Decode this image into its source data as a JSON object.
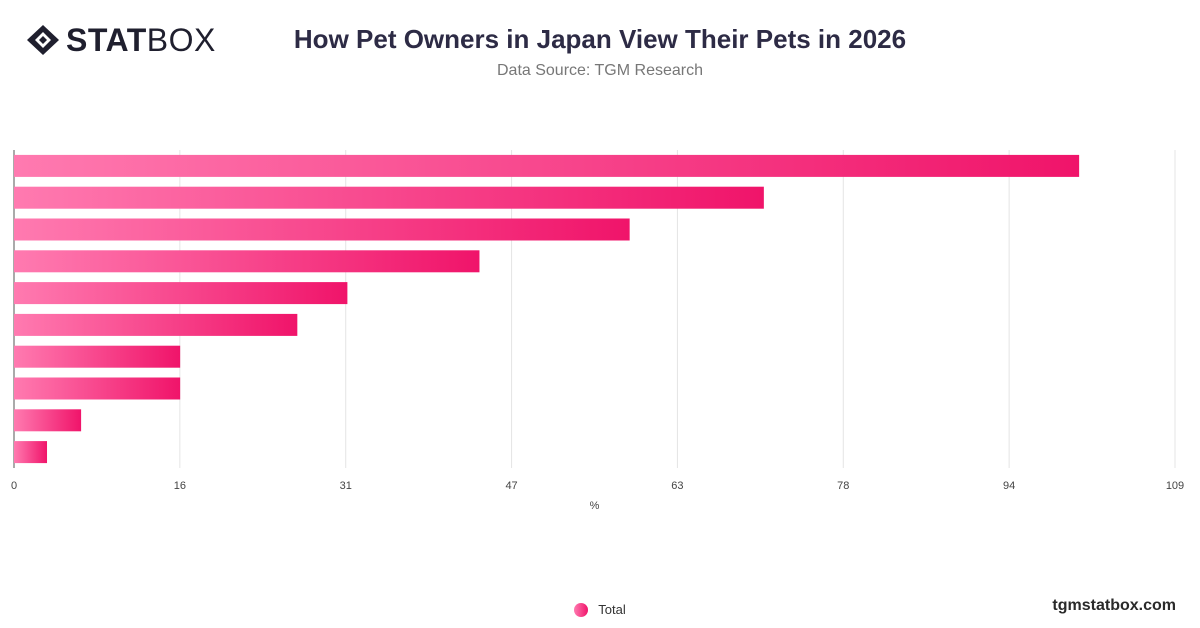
{
  "brand": {
    "logo_bold": "STAT",
    "logo_light": "BOX",
    "watermark": "tgmstatbox.com"
  },
  "chart_data": {
    "type": "bar",
    "orientation": "horizontal",
    "title": "How Pet Owners in Japan View Their Pets in 2026",
    "subtitle": "Data Source: TGM Research",
    "xlabel": "%",
    "xlim": [
      0,
      109
    ],
    "x_ticks": [
      "0",
      "16",
      "31",
      "47",
      "63",
      "78",
      "94",
      "109"
    ],
    "grid": true,
    "categories": [
      "",
      "",
      "",
      "",
      "",
      "",
      "",
      "",
      "",
      ""
    ],
    "series": [
      {
        "name": "Total",
        "values": [
          100,
          70.4,
          57.8,
          43.7,
          31.3,
          26.6,
          15.6,
          15.6,
          6.3,
          3.1
        ]
      }
    ],
    "legend_position": "bottom-center",
    "colors": {
      "bar_start": "#ff7ab0",
      "bar_end": "#f0146a",
      "grid": "#e4e4e4",
      "axis": "#555555"
    }
  }
}
